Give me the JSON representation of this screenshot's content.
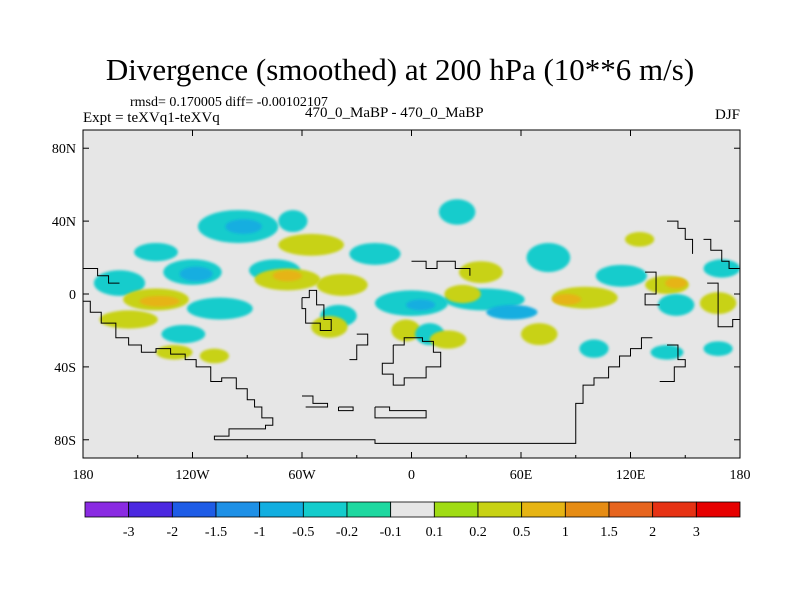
{
  "chart_data": {
    "type": "heatmap",
    "title": "Divergence (smoothed) at 200 hPa (10**6 m/s)",
    "stats_text": "rmsd= 0.170005 diff= -0.00102107",
    "experiment_label": "Expt = teXVq1-teXVq",
    "case_label": "470_0_MaBP - 470_0_MaBP",
    "season": "DJF",
    "projection": "cylindrical equidistant (lon-lat)",
    "xlim": [
      -180,
      180
    ],
    "ylim": [
      -90,
      90
    ],
    "x_ticks": [
      {
        "value": -180,
        "label": "180"
      },
      {
        "value": -120,
        "label": "120W"
      },
      {
        "value": -60,
        "label": "60W"
      },
      {
        "value": 0,
        "label": "0"
      },
      {
        "value": 60,
        "label": "60E"
      },
      {
        "value": 120,
        "label": "120E"
      },
      {
        "value": 180,
        "label": "180"
      }
    ],
    "y_ticks": [
      {
        "value": 80,
        "label": "80N"
      },
      {
        "value": 40,
        "label": "40N"
      },
      {
        "value": 0,
        "label": "0"
      },
      {
        "value": -40,
        "label": "40S"
      },
      {
        "value": -80,
        "label": "80S"
      }
    ],
    "colorbar": {
      "levels": [
        "-3",
        "-2",
        "-1.5",
        "-1",
        "-0.5",
        "-0.2",
        "-0.1",
        "0.1",
        "0.2",
        "0.5",
        "1",
        "1.5",
        "2",
        "3"
      ],
      "colors": [
        "#8a2be2",
        "#4b28e0",
        "#1e5ce6",
        "#1e90e6",
        "#12aee0",
        "#14cccc",
        "#1ed8a0",
        "#e6e6e6",
        "#a0dc14",
        "#c8d214",
        "#e6b414",
        "#e68c14",
        "#e6641e",
        "#e63214",
        "#e60000"
      ]
    },
    "background_color": "#e6e6e6",
    "regions": [
      {
        "level": -0.2,
        "lon": -120,
        "lat": 12,
        "rlon": 16,
        "rlat": 7
      },
      {
        "level": -0.5,
        "lon": -118,
        "lat": 11,
        "rlon": 9,
        "rlat": 4
      },
      {
        "level": -0.2,
        "lon": -160,
        "lat": 6,
        "rlon": 14,
        "rlat": 7
      },
      {
        "level": 0.2,
        "lon": -140,
        "lat": -3,
        "rlon": 18,
        "rlat": 6
      },
      {
        "level": 0.5,
        "lon": -138,
        "lat": -4,
        "rlon": 11,
        "rlat": 3
      },
      {
        "level": -0.2,
        "lon": -105,
        "lat": -8,
        "rlon": 18,
        "rlat": 6
      },
      {
        "level": 0.2,
        "lon": -155,
        "lat": -14,
        "rlon": 16,
        "rlat": 5
      },
      {
        "level": -0.2,
        "lon": -125,
        "lat": -22,
        "rlon": 12,
        "rlat": 5
      },
      {
        "level": 0.2,
        "lon": -130,
        "lat": -32,
        "rlon": 10,
        "rlat": 4
      },
      {
        "level": -0.2,
        "lon": -95,
        "lat": 37,
        "rlon": 22,
        "rlat": 9
      },
      {
        "level": -0.5,
        "lon": -92,
        "lat": 37,
        "rlon": 10,
        "rlat": 4
      },
      {
        "level": 0.2,
        "lon": -55,
        "lat": 27,
        "rlon": 18,
        "rlat": 6
      },
      {
        "level": -0.2,
        "lon": -140,
        "lat": 23,
        "rlon": 12,
        "rlat": 5
      },
      {
        "level": -0.2,
        "lon": -75,
        "lat": 13,
        "rlon": 14,
        "rlat": 6
      },
      {
        "level": 0.2,
        "lon": -68,
        "lat": 8,
        "rlon": 18,
        "rlat": 6
      },
      {
        "level": 0.5,
        "lon": -68,
        "lat": 10,
        "rlon": 8,
        "rlat": 3
      },
      {
        "level": 0.2,
        "lon": -38,
        "lat": 5,
        "rlon": 14,
        "rlat": 6
      },
      {
        "level": -0.2,
        "lon": -40,
        "lat": -12,
        "rlon": 10,
        "rlat": 6
      },
      {
        "level": 0.2,
        "lon": -45,
        "lat": -18,
        "rlon": 10,
        "rlat": 6
      },
      {
        "level": -0.2,
        "lon": -20,
        "lat": 22,
        "rlon": 14,
        "rlat": 6
      },
      {
        "level": -0.2,
        "lon": 0,
        "lat": -5,
        "rlon": 20,
        "rlat": 7
      },
      {
        "level": -0.5,
        "lon": 5,
        "lat": -6,
        "rlon": 8,
        "rlat": 3
      },
      {
        "level": 0.2,
        "lon": -3,
        "lat": -20,
        "rlon": 8,
        "rlat": 6
      },
      {
        "level": -0.2,
        "lon": 10,
        "lat": -22,
        "rlon": 8,
        "rlat": 6
      },
      {
        "level": 0.2,
        "lon": 20,
        "lat": -25,
        "rlon": 10,
        "rlat": 5
      },
      {
        "level": -0.2,
        "lon": 25,
        "lat": 45,
        "rlon": 10,
        "rlat": 7
      },
      {
        "level": 0.2,
        "lon": 38,
        "lat": 12,
        "rlon": 12,
        "rlat": 6
      },
      {
        "level": -0.2,
        "lon": 40,
        "lat": -3,
        "rlon": 22,
        "rlat": 6
      },
      {
        "level": -0.5,
        "lon": 55,
        "lat": -10,
        "rlon": 14,
        "rlat": 4
      },
      {
        "level": 0.2,
        "lon": 28,
        "lat": 0,
        "rlon": 10,
        "rlat": 5
      },
      {
        "level": 0.2,
        "lon": 95,
        "lat": -2,
        "rlon": 18,
        "rlat": 6
      },
      {
        "level": 0.5,
        "lon": 85,
        "lat": -3,
        "rlon": 8,
        "rlat": 3
      },
      {
        "level": -0.2,
        "lon": 75,
        "lat": 20,
        "rlon": 12,
        "rlat": 8
      },
      {
        "level": 0.2,
        "lon": 70,
        "lat": -22,
        "rlon": 10,
        "rlat": 6
      },
      {
        "level": -0.2,
        "lon": 100,
        "lat": -30,
        "rlon": 8,
        "rlat": 5
      },
      {
        "level": -0.2,
        "lon": 115,
        "lat": 10,
        "rlon": 14,
        "rlat": 6
      },
      {
        "level": 0.2,
        "lon": 140,
        "lat": 5,
        "rlon": 12,
        "rlat": 5
      },
      {
        "level": 0.5,
        "lon": 145,
        "lat": 6,
        "rlon": 6,
        "rlat": 3
      },
      {
        "level": -0.2,
        "lon": 145,
        "lat": -6,
        "rlon": 10,
        "rlat": 6
      },
      {
        "level": 0.2,
        "lon": 168,
        "lat": -5,
        "rlon": 10,
        "rlat": 6
      },
      {
        "level": -0.2,
        "lon": 170,
        "lat": 14,
        "rlon": 10,
        "rlat": 5
      },
      {
        "level": -0.2,
        "lon": 140,
        "lat": -32,
        "rlon": 9,
        "rlat": 4
      },
      {
        "level": 0.2,
        "lon": -108,
        "lat": -34,
        "rlon": 8,
        "rlat": 4
      },
      {
        "level": -0.2,
        "lon": 168,
        "lat": -30,
        "rlon": 8,
        "rlat": 4
      },
      {
        "level": 0.2,
        "lon": 125,
        "lat": 30,
        "rlon": 8,
        "rlat": 4
      },
      {
        "level": -0.2,
        "lon": -65,
        "lat": 40,
        "rlon": 8,
        "rlat": 6
      }
    ],
    "coastlines": [
      [
        [
          -180,
          14
        ],
        [
          -172,
          14
        ],
        [
          -172,
          10
        ],
        [
          -166,
          10
        ],
        [
          -166,
          6
        ],
        [
          -160,
          6
        ]
      ],
      [
        [
          -180,
          -4
        ],
        [
          -176,
          -4
        ],
        [
          -176,
          -10
        ],
        [
          -170,
          -10
        ],
        [
          -170,
          -16
        ],
        [
          -162,
          -16
        ],
        [
          -162,
          -24
        ],
        [
          -155,
          -24
        ],
        [
          -155,
          -28
        ],
        [
          -148,
          -28
        ],
        [
          -148,
          -32
        ],
        [
          -140,
          -32
        ],
        [
          -140,
          -30
        ],
        [
          -132,
          -30
        ],
        [
          -132,
          -33
        ],
        [
          -124,
          -33
        ],
        [
          -124,
          -36
        ],
        [
          -118,
          -36
        ],
        [
          -118,
          -40
        ],
        [
          -110,
          -40
        ],
        [
          -110,
          -48
        ],
        [
          -104,
          -48
        ],
        [
          -104,
          -46
        ],
        [
          -96,
          -46
        ],
        [
          -96,
          -52
        ],
        [
          -90,
          -52
        ],
        [
          -90,
          -58
        ],
        [
          -86,
          -58
        ],
        [
          -86,
          -62
        ],
        [
          -82,
          -62
        ],
        [
          -82,
          -68
        ],
        [
          -76,
          -68
        ],
        [
          -76,
          -72
        ],
        [
          -80,
          -72
        ],
        [
          -80,
          -74
        ],
        [
          -100,
          -74
        ],
        [
          -100,
          -78
        ],
        [
          -108,
          -78
        ],
        [
          -108,
          -80
        ]
      ],
      [
        [
          -108,
          -80
        ],
        [
          -20,
          -80
        ],
        [
          -20,
          -82
        ],
        [
          90,
          -82
        ],
        [
          90,
          -60
        ],
        [
          94,
          -60
        ],
        [
          94,
          -50
        ],
        [
          100,
          -50
        ],
        [
          100,
          -46
        ],
        [
          108,
          -46
        ],
        [
          108,
          -40
        ],
        [
          114,
          -40
        ],
        [
          114,
          -34
        ],
        [
          120,
          -34
        ],
        [
          120,
          -30
        ],
        [
          126,
          -30
        ],
        [
          126,
          -24
        ],
        [
          132,
          -24
        ]
      ],
      [
        [
          -60,
          -2
        ],
        [
          -56,
          -2
        ],
        [
          -56,
          2
        ],
        [
          -52,
          2
        ],
        [
          -52,
          -6
        ],
        [
          -48,
          -6
        ],
        [
          -48,
          -14
        ],
        [
          -44,
          -14
        ],
        [
          -44,
          -20
        ],
        [
          -50,
          -20
        ],
        [
          -50,
          -16
        ],
        [
          -58,
          -16
        ],
        [
          -58,
          -8
        ],
        [
          -60,
          -8
        ],
        [
          -60,
          -2
        ]
      ],
      [
        [
          -30,
          -22
        ],
        [
          -24,
          -22
        ],
        [
          -24,
          -28
        ],
        [
          -30,
          -28
        ],
        [
          -30,
          -36
        ],
        [
          -34,
          -36
        ]
      ],
      [
        [
          0,
          18
        ],
        [
          8,
          18
        ],
        [
          8,
          14
        ],
        [
          14,
          14
        ],
        [
          14,
          18
        ],
        [
          24,
          18
        ],
        [
          24,
          14
        ],
        [
          32,
          14
        ],
        [
          32,
          10
        ]
      ],
      [
        [
          -10,
          -28
        ],
        [
          -4,
          -28
        ],
        [
          -4,
          -24
        ],
        [
          6,
          -24
        ],
        [
          6,
          -26
        ],
        [
          12,
          -26
        ],
        [
          12,
          -32
        ],
        [
          16,
          -32
        ],
        [
          16,
          -40
        ],
        [
          8,
          -40
        ],
        [
          8,
          -46
        ],
        [
          -4,
          -46
        ],
        [
          -4,
          -50
        ],
        [
          -10,
          -50
        ],
        [
          -10,
          -44
        ],
        [
          -16,
          -44
        ],
        [
          -16,
          -38
        ],
        [
          -10,
          -38
        ],
        [
          -10,
          -28
        ]
      ],
      [
        [
          -60,
          -56
        ],
        [
          -54,
          -56
        ],
        [
          -54,
          -60
        ],
        [
          -46,
          -60
        ],
        [
          -46,
          -62
        ],
        [
          -58,
          -62
        ]
      ],
      [
        [
          -40,
          -62
        ],
        [
          -32,
          -62
        ],
        [
          -32,
          -64
        ],
        [
          -40,
          -64
        ],
        [
          -40,
          -62
        ]
      ],
      [
        [
          -20,
          -62
        ],
        [
          -12,
          -62
        ],
        [
          -12,
          -64
        ],
        [
          8,
          -64
        ],
        [
          8,
          -68
        ],
        [
          -20,
          -68
        ],
        [
          -20,
          -62
        ]
      ],
      [
        [
          140,
          40
        ],
        [
          146,
          40
        ],
        [
          146,
          36
        ],
        [
          150,
          36
        ],
        [
          150,
          30
        ],
        [
          154,
          30
        ],
        [
          154,
          22
        ]
      ],
      [
        [
          160,
          30
        ],
        [
          164,
          30
        ],
        [
          164,
          24
        ],
        [
          170,
          24
        ],
        [
          170,
          18
        ],
        [
          174,
          18
        ],
        [
          174,
          14
        ],
        [
          180,
          14
        ]
      ],
      [
        [
          128,
          12
        ],
        [
          134,
          12
        ],
        [
          134,
          0
        ],
        [
          128,
          0
        ],
        [
          128,
          -6
        ],
        [
          136,
          -6
        ]
      ],
      [
        [
          162,
          6
        ],
        [
          168,
          6
        ],
        [
          168,
          -18
        ],
        [
          176,
          -18
        ],
        [
          176,
          -14
        ],
        [
          180,
          -14
        ]
      ],
      [
        [
          140,
          -28
        ],
        [
          146,
          -28
        ],
        [
          146,
          -36
        ],
        [
          150,
          -36
        ],
        [
          150,
          -40
        ],
        [
          144,
          -40
        ],
        [
          144,
          -48
        ],
        [
          136,
          -48
        ]
      ]
    ]
  }
}
